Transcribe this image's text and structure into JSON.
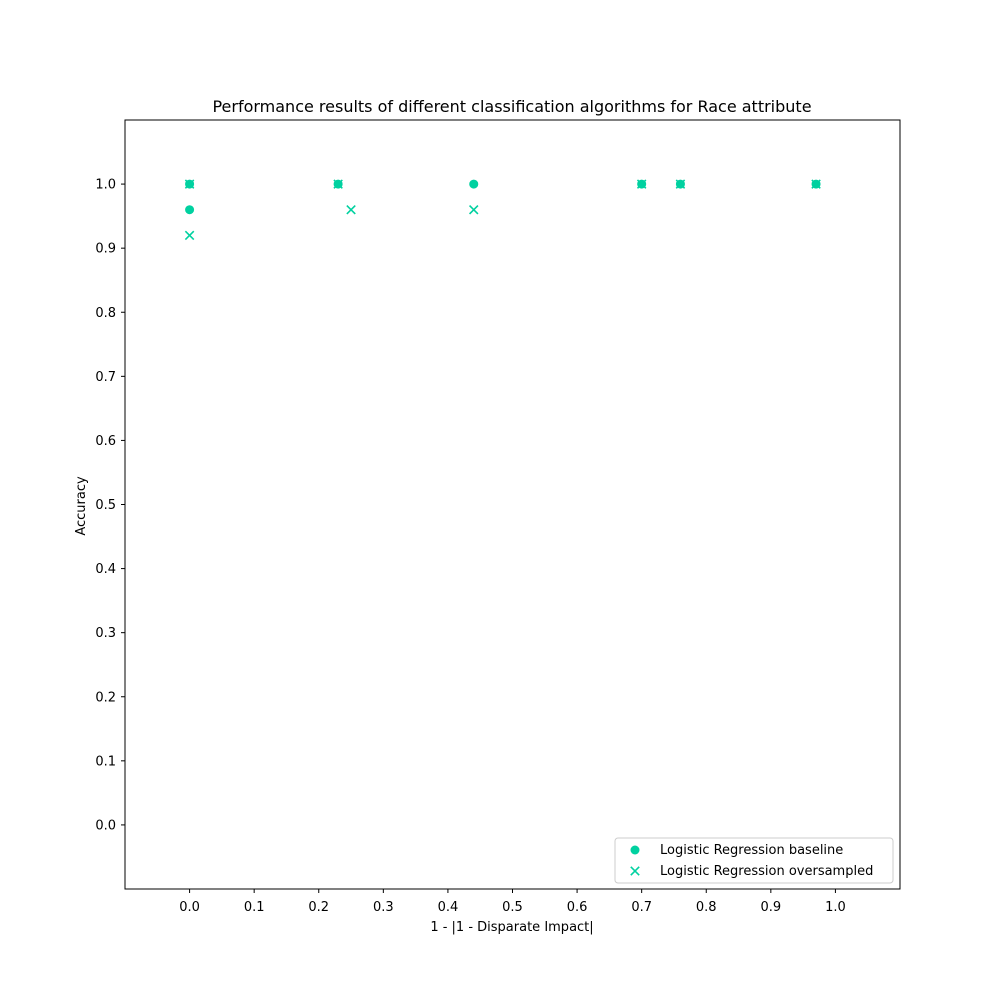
{
  "chart_data": {
    "type": "scatter",
    "title": "Performance results of different classification algorithms for Race attribute",
    "xlabel": "1 - |1 - Disparate Impact|",
    "ylabel": "Accuracy",
    "xlim": [
      -0.1,
      1.1
    ],
    "ylim": [
      -0.1,
      1.1
    ],
    "xticks": [
      "0.0",
      "0.1",
      "0.2",
      "0.3",
      "0.4",
      "0.5",
      "0.6",
      "0.7",
      "0.8",
      "0.9",
      "1.0"
    ],
    "yticks": [
      "0.0",
      "0.1",
      "0.2",
      "0.3",
      "0.4",
      "0.5",
      "0.6",
      "0.7",
      "0.8",
      "0.9",
      "1.0"
    ],
    "grid": false,
    "legend_position": "lower-right",
    "series": [
      {
        "name": "Logistic Regression baseline",
        "marker": "circle",
        "color": "#00d1a0",
        "points": [
          {
            "x": 0.0,
            "y": 1.0
          },
          {
            "x": 0.0,
            "y": 0.96
          },
          {
            "x": 0.23,
            "y": 1.0
          },
          {
            "x": 0.44,
            "y": 1.0
          },
          {
            "x": 0.7,
            "y": 1.0
          },
          {
            "x": 0.76,
            "y": 1.0
          },
          {
            "x": 0.97,
            "y": 1.0
          }
        ]
      },
      {
        "name": "Logistic Regression oversampled",
        "marker": "x",
        "color": "#00d1a0",
        "points": [
          {
            "x": 0.0,
            "y": 1.0
          },
          {
            "x": 0.0,
            "y": 0.92
          },
          {
            "x": 0.23,
            "y": 1.0
          },
          {
            "x": 0.25,
            "y": 0.96
          },
          {
            "x": 0.44,
            "y": 0.96
          },
          {
            "x": 0.7,
            "y": 1.0
          },
          {
            "x": 0.76,
            "y": 1.0
          },
          {
            "x": 0.97,
            "y": 1.0
          }
        ]
      }
    ]
  }
}
